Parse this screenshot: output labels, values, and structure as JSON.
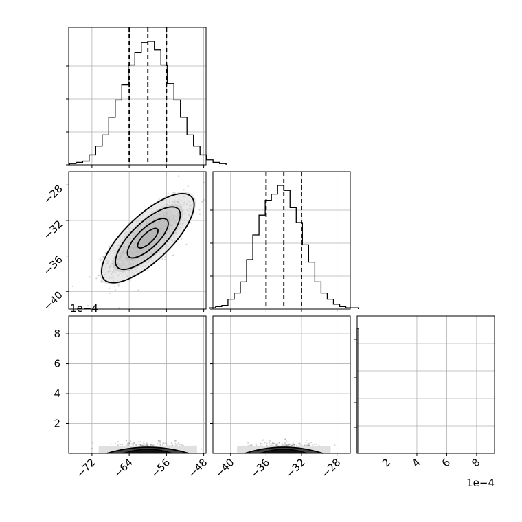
{
  "chart_data": {
    "type": "corner",
    "parameters": [
      {
        "ticks": [
          -72,
          -64,
          -56,
          -48
        ],
        "range": [
          -77,
          -47.5
        ],
        "mean": -60.0,
        "sigma": 4.0,
        "quantiles": [
          -64.0,
          -60.0,
          -56.0
        ],
        "tick_labels": [
          "−72",
          "−64",
          "−56",
          "−48"
        ]
      },
      {
        "ticks": [
          -40,
          -36,
          -32,
          -28
        ],
        "range": [
          -42,
          -26.5
        ],
        "mean": -34.0,
        "sigma": 2.0,
        "quantiles": [
          -36.0,
          -34.0,
          -32.0
        ],
        "tick_labels": [
          "−40",
          "−36",
          "−32",
          "−28"
        ]
      },
      {
        "ticks": [
          2,
          4,
          6,
          8
        ],
        "range": [
          0,
          9.2
        ],
        "mean": 0.05,
        "sigma": 0.02,
        "quantiles": [],
        "tick_labels": [
          "2",
          "4",
          "6",
          "8"
        ]
      }
    ],
    "offset_label_row2": "1e−4",
    "offset_label_x3": "1e−4",
    "hist1_counts": [
      1,
      2,
      3,
      8,
      15,
      24,
      38,
      52,
      64,
      80,
      90,
      98,
      99,
      92,
      80,
      65,
      52,
      38,
      24,
      15,
      8,
      4,
      2,
      1
    ],
    "hist2_counts": [
      1,
      2,
      3,
      8,
      13,
      22,
      40,
      60,
      76,
      88,
      93,
      100,
      96,
      82,
      70,
      52,
      38,
      22,
      13,
      8,
      4,
      2,
      1,
      1
    ],
    "correlation": 0.75,
    "n_scatter": 1500
  }
}
